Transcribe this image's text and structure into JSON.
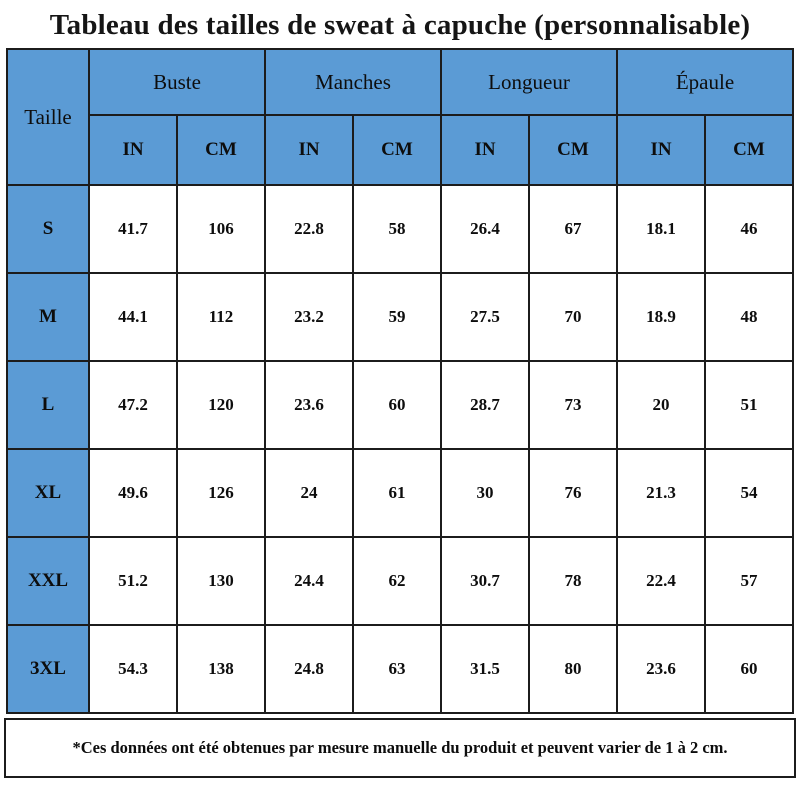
{
  "colors": {
    "header_fill": "#5b9bd5",
    "border": "#1c1c1c",
    "text": "#0d0d0d",
    "background": "#ffffff"
  },
  "chart_data": {
    "type": "table",
    "title": "Tableau des tailles de sweat à capuche (personnalisable)",
    "corner_header": "Taille",
    "column_groups": [
      "Buste",
      "Manches",
      "Longueur",
      "Épaule"
    ],
    "unit_subheaders": [
      "IN",
      "CM"
    ],
    "columns": [
      "Taille",
      "Buste IN",
      "Buste CM",
      "Manches IN",
      "Manches CM",
      "Longueur IN",
      "Longueur CM",
      "Épaule IN",
      "Épaule CM"
    ],
    "rows": [
      {
        "size": "S",
        "values": [
          41.7,
          106,
          22.8,
          58,
          26.4,
          67,
          18.1,
          46
        ]
      },
      {
        "size": "M",
        "values": [
          44.1,
          112,
          23.2,
          59,
          27.5,
          70,
          18.9,
          48
        ]
      },
      {
        "size": "L",
        "values": [
          47.2,
          120,
          23.6,
          60,
          28.7,
          73,
          20,
          51
        ]
      },
      {
        "size": "XL",
        "values": [
          49.6,
          126,
          24,
          61,
          30,
          76,
          21.3,
          54
        ]
      },
      {
        "size": "XXL",
        "values": [
          51.2,
          130,
          24.4,
          62,
          30.7,
          78,
          22.4,
          57
        ]
      },
      {
        "size": "3XL",
        "values": [
          54.3,
          138,
          24.8,
          63,
          31.5,
          80,
          23.6,
          60
        ]
      }
    ],
    "footnote": "*Ces données ont été obtenues par mesure manuelle du produit et peuvent varier de 1 à 2 cm.",
    "layout_hints": {
      "header_rows": 2,
      "grid": true,
      "header_fill": "#5b9bd5",
      "body_fill": "#ffffff"
    }
  }
}
